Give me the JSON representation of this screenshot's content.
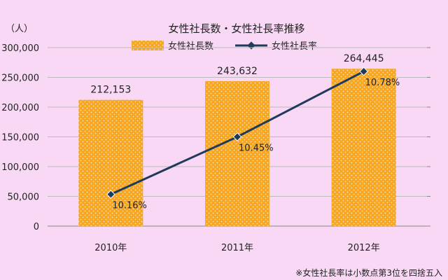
{
  "chart_data": {
    "type": "bar",
    "title": "女性社長数・女性社長率推移",
    "y_unit_label": "（人）",
    "categories": [
      "2010年",
      "2011年",
      "2012年"
    ],
    "series": [
      {
        "name": "女性社長数",
        "kind": "bar",
        "values": [
          212153,
          243632,
          264445
        ],
        "value_labels": [
          "212,153",
          "243,632",
          "264,445"
        ],
        "color": "#f5a623"
      },
      {
        "name": "女性社長率",
        "kind": "line",
        "values": [
          10.16,
          10.45,
          10.78
        ],
        "value_labels": [
          "10.16%",
          "10.45%",
          "10.78%"
        ],
        "color": "#1f3a5a"
      }
    ],
    "y_left": {
      "ylim": [
        0,
        300000
      ],
      "ticks": [
        0,
        50000,
        100000,
        150000,
        200000,
        250000,
        300000
      ],
      "tick_labels": [
        "0",
        "50,000",
        "100,000",
        "150,000",
        "200,000",
        "250,000",
        "300,000"
      ]
    },
    "y_right": {
      "ylim": [
        10.0,
        10.9
      ]
    },
    "grid": true,
    "legend_position": "top"
  },
  "footnote": "※女性社長率は小数点第3位を四捨五入"
}
